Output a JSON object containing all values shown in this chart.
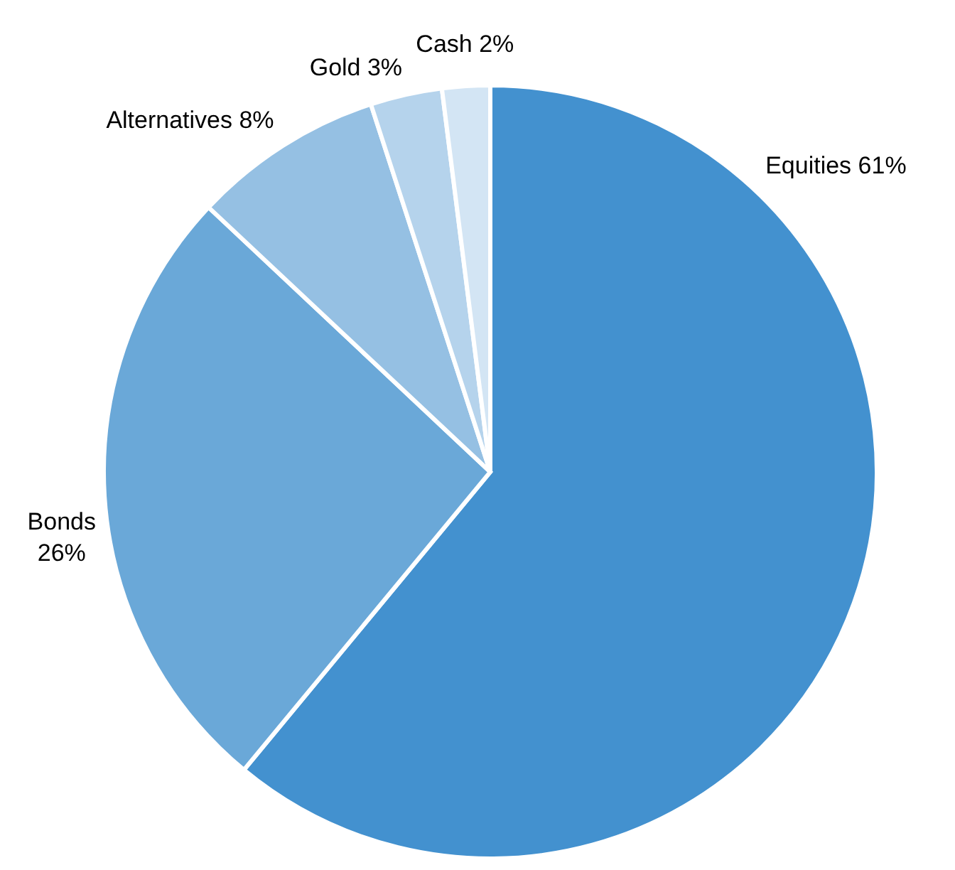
{
  "chart_data": {
    "type": "pie",
    "categories": [
      "Equities",
      "Bonds",
      "Alternatives",
      "Gold",
      "Cash"
    ],
    "values": [
      61,
      26,
      8,
      3,
      2
    ],
    "value_labels": [
      "61%",
      "26%",
      "8%",
      "3%",
      "2%"
    ],
    "colors": [
      "#4391cf",
      "#6aa8d8",
      "#95c0e3",
      "#b5d3ec",
      "#d3e5f4"
    ]
  }
}
